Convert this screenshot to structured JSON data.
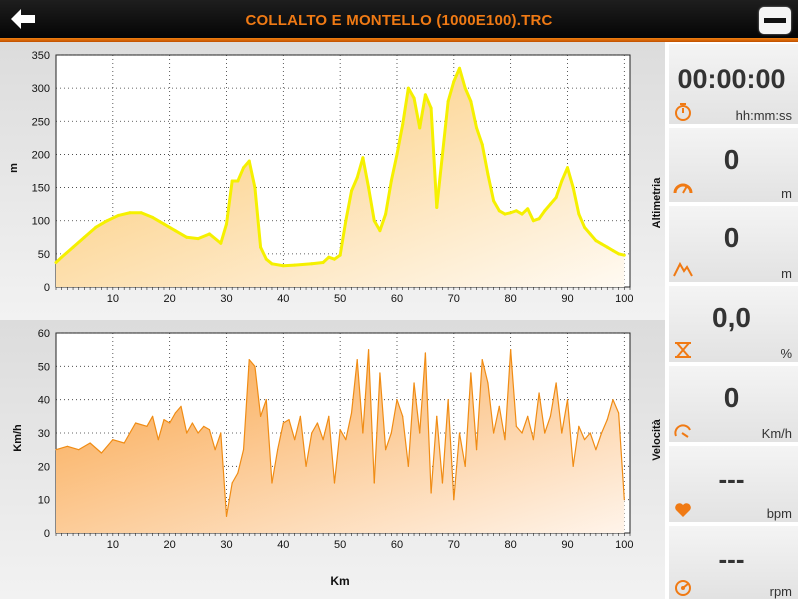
{
  "header": {
    "title": "COLLALTO E MONTELLO (1000E100).TRC",
    "back_icon": "arrow-left-icon",
    "menu_icon": "minus-icon"
  },
  "colors": {
    "accent": "#f07a14",
    "altitude_fill": "#fdd98a",
    "altitude_line": "#f5f000",
    "speed_line": "#f08c14",
    "speed_fill": "#f7b468"
  },
  "chart_data": [
    {
      "type": "area",
      "title": "Altimetria",
      "xlabel": "",
      "ylabel": "m",
      "xlim": [
        0,
        101
      ],
      "ylim": [
        0,
        350
      ],
      "x_ticks": [
        10,
        20,
        30,
        40,
        50,
        60,
        70,
        80,
        90,
        100
      ],
      "y_ticks": [
        0,
        50,
        100,
        150,
        200,
        250,
        300,
        350
      ],
      "grid": true,
      "x": [
        0,
        1,
        3,
        5,
        7,
        9,
        11,
        13,
        15,
        17,
        19,
        21,
        23,
        25,
        27,
        29,
        30,
        31,
        32,
        33,
        34,
        35,
        36,
        37,
        38,
        40,
        42,
        45,
        47,
        48,
        49,
        50,
        51,
        52,
        53,
        54,
        55,
        56,
        57,
        58,
        59,
        60,
        61,
        62,
        63,
        64,
        65,
        66,
        67,
        68,
        69,
        70,
        71,
        72,
        73,
        74,
        75,
        76,
        77,
        78,
        79,
        80,
        81,
        82,
        83,
        84,
        85,
        86,
        87,
        88,
        89,
        90,
        91,
        92,
        93,
        94,
        95,
        96,
        97,
        98,
        99,
        100
      ],
      "values": [
        37,
        45,
        60,
        75,
        90,
        100,
        108,
        112,
        112,
        105,
        95,
        85,
        75,
        73,
        80,
        66,
        95,
        160,
        160,
        180,
        190,
        150,
        60,
        42,
        35,
        32,
        33,
        35,
        37,
        45,
        42,
        48,
        100,
        145,
        165,
        195,
        150,
        100,
        85,
        110,
        160,
        200,
        245,
        300,
        285,
        240,
        290,
        270,
        120,
        200,
        280,
        310,
        330,
        300,
        280,
        240,
        215,
        170,
        130,
        115,
        110,
        112,
        115,
        110,
        118,
        100,
        103,
        115,
        125,
        135,
        160,
        180,
        150,
        110,
        90,
        80,
        70,
        65,
        60,
        55,
        50,
        48
      ]
    },
    {
      "type": "area",
      "title": "Velocità",
      "xlabel": "Km",
      "ylabel": "Km/h",
      "xlim": [
        0,
        101
      ],
      "ylim": [
        0,
        60
      ],
      "x_ticks": [
        10,
        20,
        30,
        40,
        50,
        60,
        70,
        80,
        90,
        100
      ],
      "y_ticks": [
        0,
        10,
        20,
        30,
        40,
        50,
        60
      ],
      "grid": true,
      "x": [
        0,
        2,
        4,
        6,
        8,
        10,
        12,
        14,
        16,
        17,
        18,
        19,
        20,
        21,
        22,
        23,
        24,
        25,
        26,
        27,
        28,
        29,
        30,
        31,
        32,
        33,
        34,
        35,
        36,
        37,
        38,
        39,
        40,
        41,
        42,
        43,
        44,
        45,
        46,
        47,
        48,
        49,
        50,
        51,
        52,
        53,
        54,
        55,
        56,
        57,
        58,
        59,
        60,
        61,
        62,
        63,
        64,
        65,
        66,
        67,
        68,
        69,
        70,
        71,
        72,
        73,
        74,
        75,
        76,
        77,
        78,
        79,
        80,
        81,
        82,
        83,
        84,
        85,
        86,
        87,
        88,
        89,
        90,
        91,
        92,
        93,
        94,
        95,
        96,
        97,
        98,
        99,
        100
      ],
      "values": [
        25,
        26,
        25,
        27,
        24,
        28,
        27,
        33,
        32,
        35,
        28,
        34,
        33,
        36,
        38,
        30,
        33,
        30,
        32,
        31,
        25,
        30,
        5,
        15,
        18,
        25,
        52,
        50,
        35,
        40,
        15,
        25,
        33,
        34,
        28,
        35,
        20,
        30,
        33,
        28,
        35,
        15,
        31,
        28,
        36,
        52,
        30,
        55,
        15,
        48,
        25,
        30,
        40,
        35,
        20,
        45,
        30,
        54,
        12,
        35,
        15,
        40,
        10,
        30,
        20,
        48,
        25,
        52,
        45,
        30,
        38,
        28,
        55,
        32,
        30,
        35,
        28,
        42,
        30,
        35,
        45,
        30,
        40,
        20,
        32,
        28,
        30,
        25,
        30,
        34,
        40,
        36,
        10
      ]
    }
  ],
  "sidebar": {
    "time": {
      "value": "00:00:00",
      "unit": "hh:mm:ss",
      "icon": "stopwatch-icon"
    },
    "distance": {
      "value": "0",
      "unit": "m",
      "icon": "odometer-icon"
    },
    "altitude": {
      "value": "0",
      "unit": "m",
      "icon": "mountain-icon"
    },
    "slope": {
      "value": "0,0",
      "unit": "%",
      "icon": "slope-icon"
    },
    "speed": {
      "value": "0",
      "unit": "Km/h",
      "icon": "speedometer-icon"
    },
    "heart_rate": {
      "value": "---",
      "unit": "bpm",
      "icon": "heart-icon"
    },
    "cadence": {
      "value": "---",
      "unit": "rpm",
      "icon": "cadence-icon"
    }
  }
}
